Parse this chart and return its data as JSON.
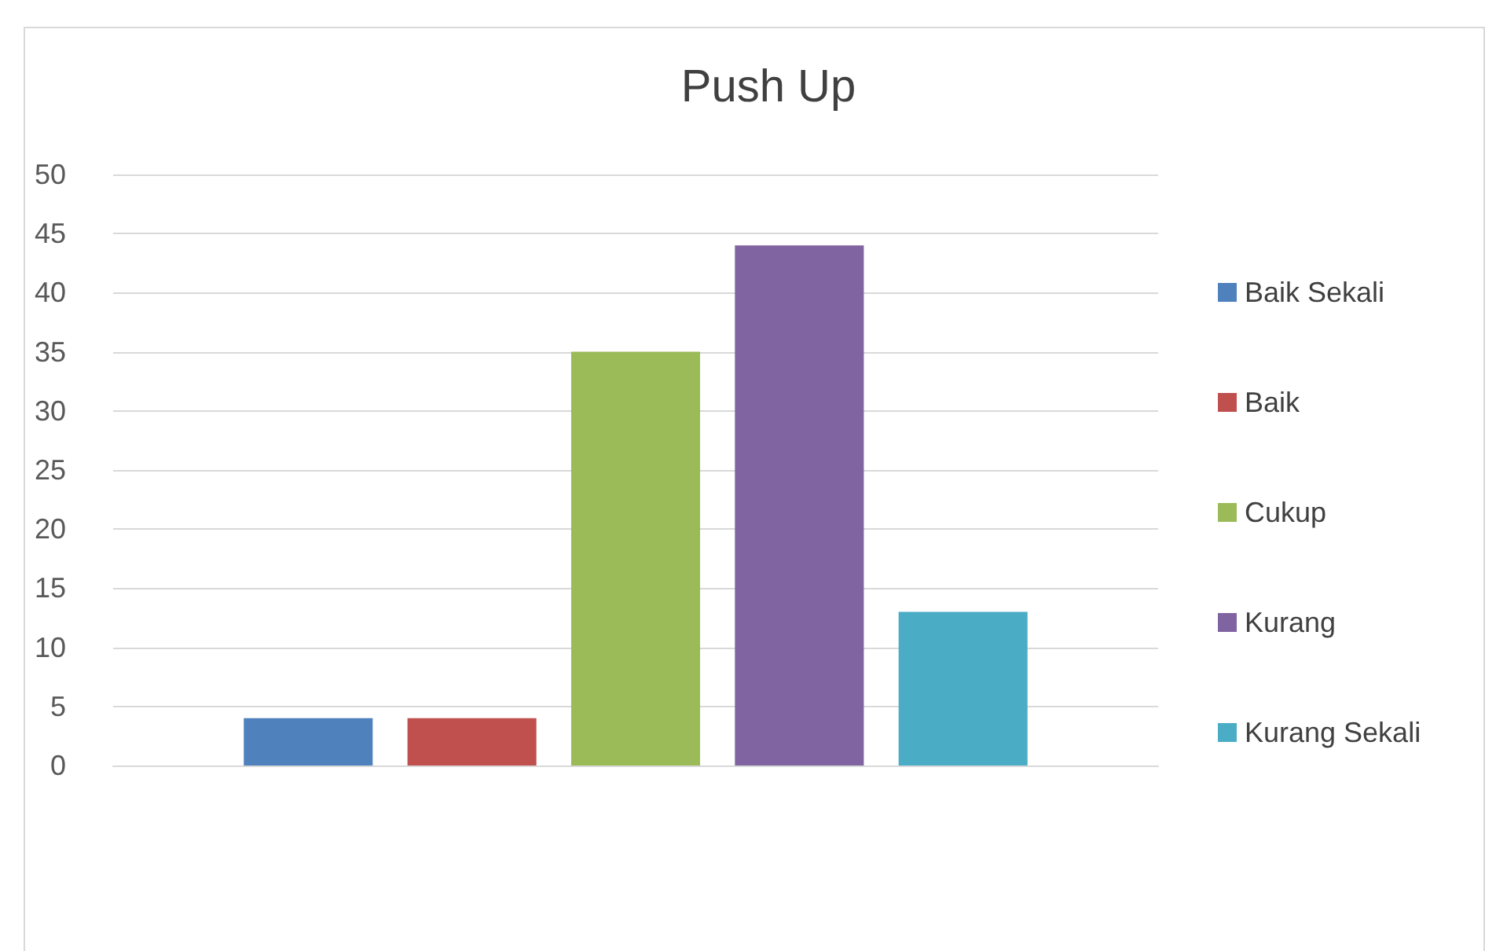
{
  "chart_data": {
    "type": "bar",
    "title": "Push Up",
    "categories": [
      null
    ],
    "series": [
      {
        "name": "Baik Sekali",
        "color": "#4f81bd",
        "values": [
          4
        ]
      },
      {
        "name": "Baik",
        "color": "#c0504d",
        "values": [
          4
        ]
      },
      {
        "name": "Cukup",
        "color": "#9bbb59",
        "values": [
          35
        ]
      },
      {
        "name": "Kurang",
        "color": "#8064a2",
        "values": [
          44
        ]
      },
      {
        "name": "Kurang Sekali",
        "color": "#4bacc6",
        "values": [
          13
        ]
      }
    ],
    "ylim": [
      0,
      50
    ],
    "yticks": [
      0,
      5,
      10,
      15,
      20,
      25,
      30,
      35,
      40,
      45,
      50
    ],
    "grid": "y",
    "legend": "right"
  }
}
